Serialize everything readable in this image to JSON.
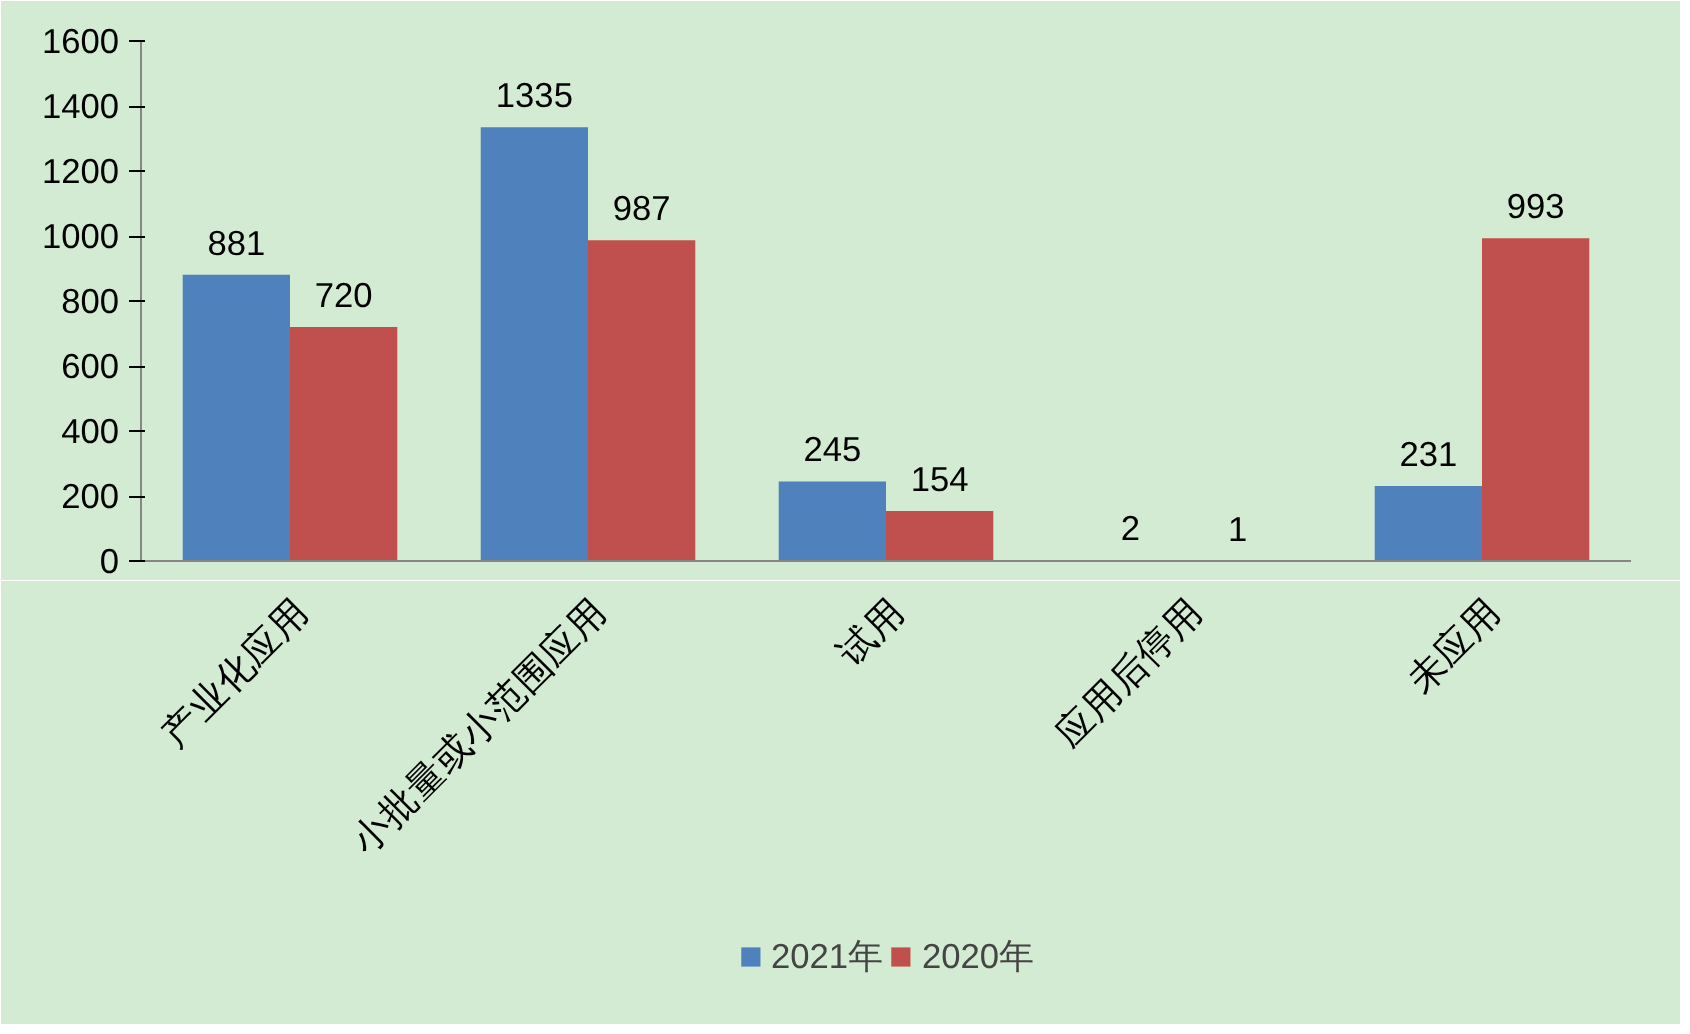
{
  "chart_data": {
    "type": "bar",
    "categories": [
      "产业化应用",
      "小批量或小范围应用",
      "试用",
      "应用后停用",
      "未应用"
    ],
    "series": [
      {
        "name": "2021年",
        "color": "#4f81bd",
        "values": [
          881,
          1335,
          245,
          2,
          231
        ]
      },
      {
        "name": "2020年",
        "color": "#c0504d",
        "values": [
          720,
          987,
          154,
          1,
          993
        ]
      }
    ],
    "ylim": [
      0,
      1600
    ],
    "yticks": [
      0,
      200,
      400,
      600,
      800,
      1000,
      1200,
      1400,
      1600
    ],
    "grid": false,
    "legend": "bottom",
    "data_labels": true
  }
}
